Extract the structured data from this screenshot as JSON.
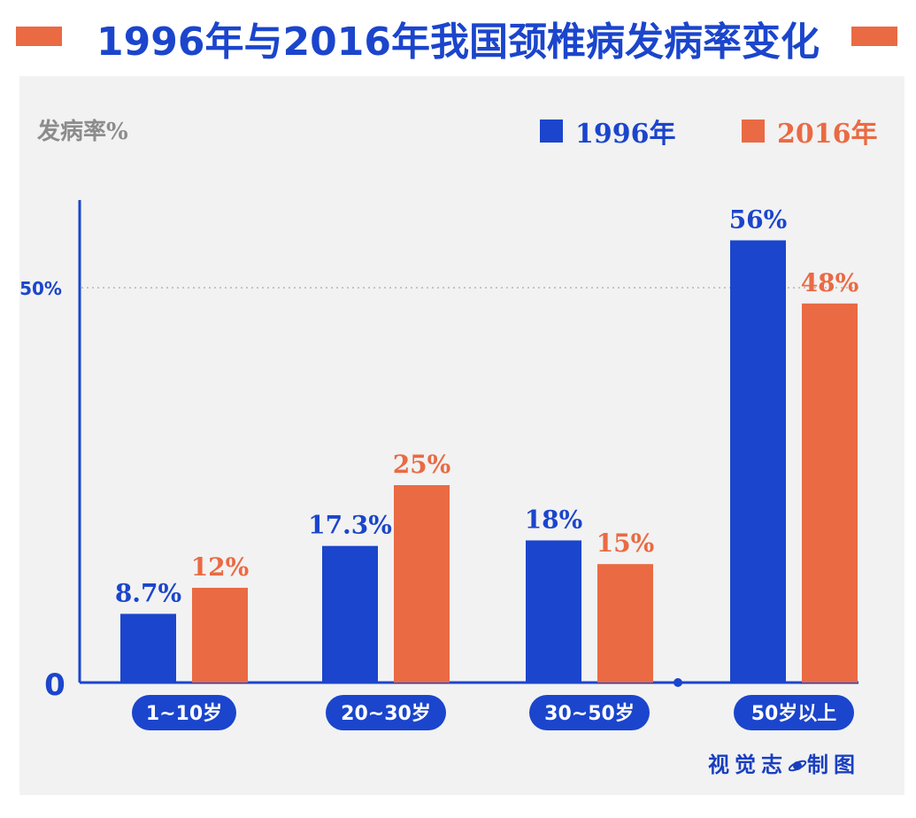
{
  "colors": {
    "series1996": "#1b45cc",
    "series2016": "#ea6a43",
    "axis": "#1b45cc",
    "title": "#1b45cc",
    "accent": "#ea6a43"
  },
  "title": "1996年与2016年我国颈椎病发病率变化",
  "credit": {
    "left": "视觉志",
    "right": "制图",
    "icon": "planet-icon"
  },
  "chart_data": {
    "type": "bar",
    "ylabel": "发病率%",
    "categories": [
      "1~10岁",
      "20~30岁",
      "30~50岁",
      "50岁以上"
    ],
    "series": [
      {
        "name": "1996年",
        "values": [
          8.7,
          17.3,
          18,
          56
        ],
        "labels": [
          "8.7%",
          "17.3%",
          "18%",
          "56%"
        ]
      },
      {
        "name": "2016年",
        "values": [
          12,
          25,
          15,
          48
        ],
        "labels": [
          "12%",
          "25%",
          "15%",
          "48%"
        ]
      }
    ],
    "yticks": [
      {
        "value": 0,
        "label": "0"
      },
      {
        "value": 50,
        "label": "50%"
      }
    ],
    "reference_line": 50,
    "legend": "top-right"
  }
}
